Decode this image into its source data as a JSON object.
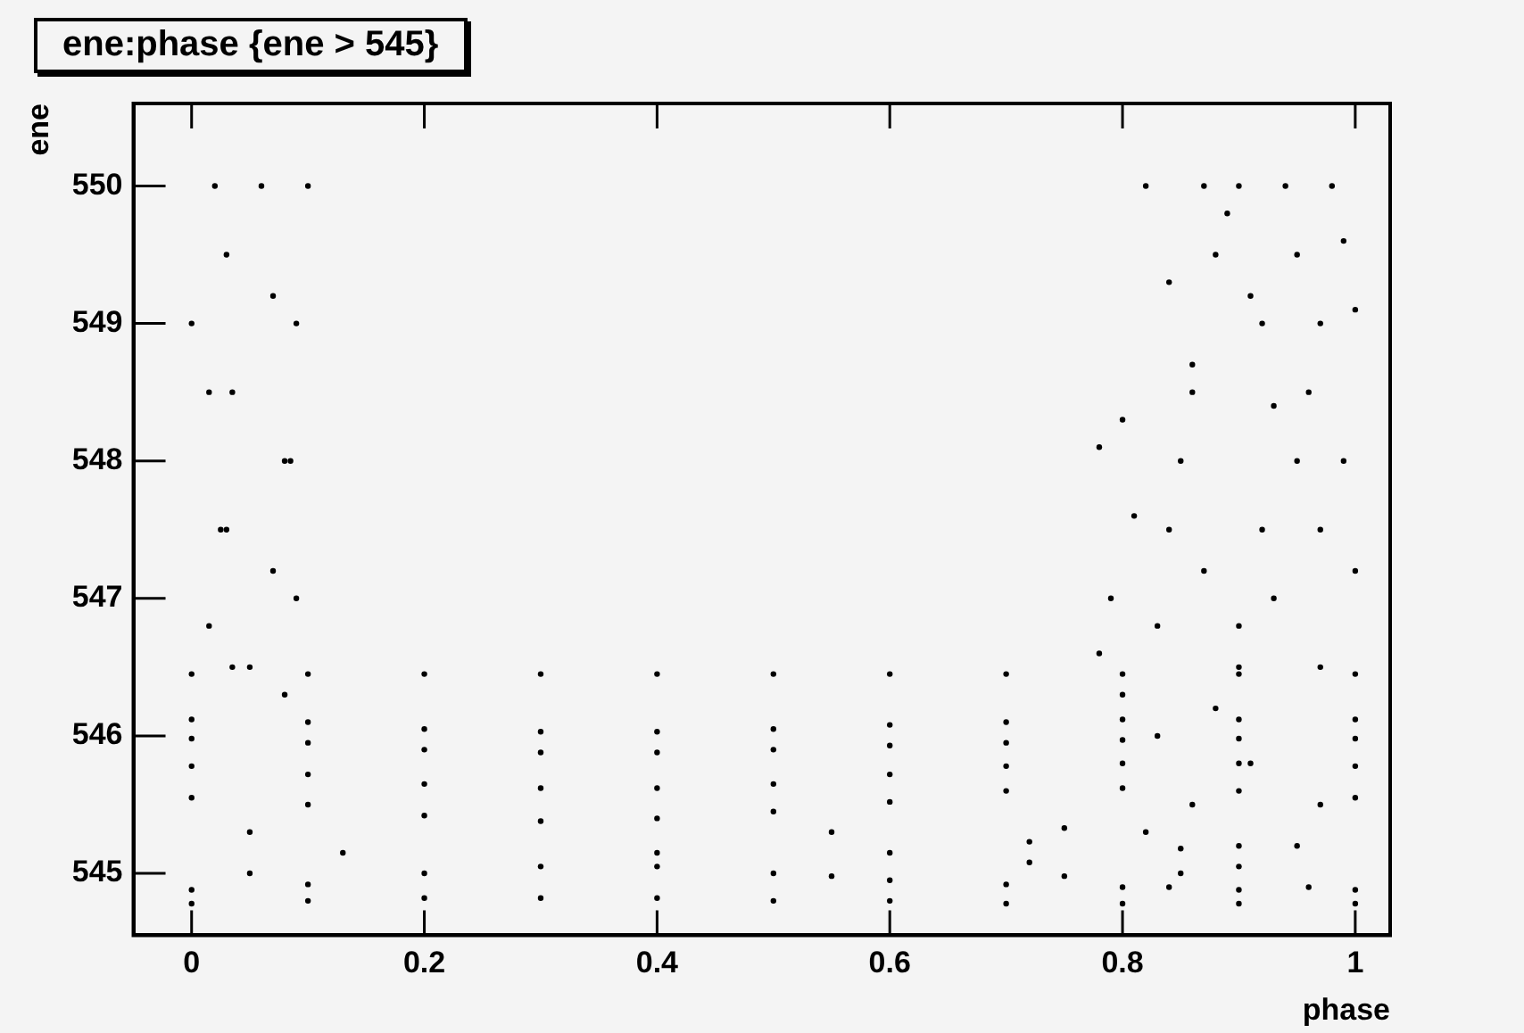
{
  "chart_data": {
    "type": "scatter",
    "title": "ene:phase {ene > 545}",
    "xlabel": "phase",
    "ylabel": "ene",
    "xlim": [
      -0.05,
      1.03
    ],
    "ylim": [
      544.55,
      550.6
    ],
    "xticks": [
      0,
      0.2,
      0.4,
      0.6,
      0.8,
      1
    ],
    "yticks": [
      545,
      546,
      547,
      548,
      549,
      550
    ],
    "grid": false,
    "legend": false,
    "marker": "circle",
    "series": [
      {
        "color": "#000000",
        "x": [
          0,
          0.1,
          0.2,
          0.3,
          0.4,
          0.5,
          0.6,
          0.7,
          0.8,
          0.9,
          1,
          0,
          0.1,
          0.2,
          0.3,
          0.4,
          0.5,
          0.6,
          0.7,
          0.8,
          0.9,
          1,
          0,
          0.1,
          0.2,
          0.3,
          0.4,
          0.5,
          0.6,
          0.7,
          0.8,
          0.9,
          1,
          0,
          0.1,
          0.2,
          0.3,
          0.4,
          0.5,
          0.6,
          0.7,
          0.8,
          0.9,
          1,
          0,
          0.1,
          0.2,
          0.3,
          0.4,
          0.5,
          0.6,
          0.7,
          0.8,
          0.9,
          1,
          0.13,
          0.05,
          0.05,
          0.4,
          0.55,
          0.75,
          0.95,
          0.55,
          0.75,
          0.9,
          0.6,
          0.72,
          0.85,
          0.72,
          0,
          0.1,
          0.2,
          0.3,
          0.4,
          0.5,
          0.6,
          0.7,
          0.8,
          0.9,
          1,
          0,
          0.1,
          0.2,
          0.3,
          0.4,
          0.5,
          0.6,
          0.7,
          0.8,
          0.9,
          1,
          0.02,
          0.03,
          0.035,
          0.03,
          0.015,
          0.1,
          0.09,
          0.08,
          0.07,
          0.05,
          0.06,
          0.07,
          0.085,
          0.09,
          0.08,
          0,
          0.015,
          0.025,
          0.035,
          0.78,
          0.8,
          0.81,
          0.79,
          0.78,
          0.8,
          0.82,
          0.84,
          0.86,
          0.84,
          0.83,
          0.83,
          0.82,
          0.84,
          0.87,
          0.88,
          0.86,
          0.85,
          0.87,
          0.9,
          0.91,
          0.9,
          0.9,
          0.91,
          0.93,
          0.92,
          0.9,
          0.88,
          0.86,
          0.85,
          0.94,
          0.95,
          0.96,
          0.97,
          0.97,
          0.97,
          0.96,
          0.98,
          0.99,
          1,
          0.97,
          0.99,
          1,
          0.89,
          0.92,
          0.95,
          0.93
        ],
        "values": [
          546.45,
          546.45,
          546.45,
          546.45,
          546.45,
          546.45,
          546.45,
          546.45,
          546.45,
          546.45,
          546.45,
          546.12,
          546.1,
          546.05,
          546.03,
          546.03,
          546.05,
          546.08,
          546.1,
          546.12,
          546.12,
          546.12,
          545.98,
          545.95,
          545.9,
          545.88,
          545.88,
          545.9,
          545.93,
          545.95,
          545.97,
          545.98,
          545.98,
          545.78,
          545.72,
          545.65,
          545.62,
          545.62,
          545.65,
          545.72,
          545.78,
          545.8,
          545.8,
          545.78,
          545.55,
          545.5,
          545.42,
          545.38,
          545.4,
          545.45,
          545.52,
          545.6,
          545.62,
          545.6,
          545.55,
          545.15,
          545.3,
          545,
          545.15,
          545.3,
          545.33,
          545.2,
          544.98,
          544.98,
          545.05,
          545.15,
          545.23,
          545.18,
          545.08,
          544.88,
          544.92,
          545,
          545.05,
          545.05,
          545,
          544.95,
          544.92,
          544.9,
          544.88,
          544.88,
          544.78,
          544.8,
          544.82,
          544.82,
          544.82,
          544.8,
          544.8,
          544.78,
          544.78,
          544.78,
          544.78,
          550,
          549.5,
          548.5,
          547.5,
          546.8,
          550,
          549,
          548,
          547.2,
          546.5,
          550,
          549.2,
          548,
          547,
          546.3,
          549,
          548.5,
          547.5,
          546.5,
          548.1,
          548.3,
          547.6,
          547,
          546.6,
          546.3,
          550,
          549.3,
          548.5,
          547.5,
          546.8,
          546,
          545.3,
          544.9,
          550,
          549.5,
          548.7,
          548,
          547.2,
          546.5,
          545.8,
          545.2,
          550,
          549.2,
          548.4,
          547.5,
          546.8,
          546.2,
          545.5,
          545,
          550,
          549.5,
          548.5,
          547.5,
          546.5,
          545.5,
          544.9,
          550,
          549.6,
          549.1,
          549,
          548,
          547.2,
          549.8,
          549,
          548,
          547
        ]
      }
    ]
  }
}
